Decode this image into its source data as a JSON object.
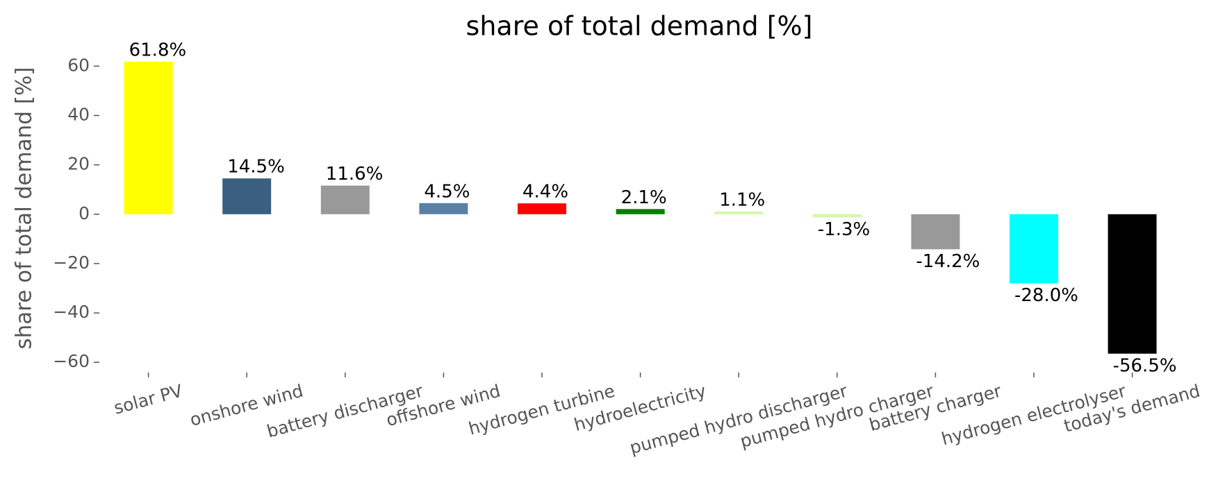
{
  "chart_data": {
    "type": "bar",
    "title": "share of total demand [%]",
    "y_label": "share of total demand [%]",
    "categories": [
      "solar PV",
      "onshore wind",
      "battery discharger",
      "offshore wind",
      "hydrogen turbine",
      "hydroelectricity",
      "pumped hydro discharger",
      "pumped hydro charger",
      "battery charger",
      "hydrogen electrolyser",
      "today's demand"
    ],
    "values": [
      61.8,
      14.5,
      11.6,
      4.5,
      4.4,
      2.1,
      1.1,
      -1.3,
      -14.2,
      -28.0,
      -56.5
    ],
    "value_labels": [
      "61.8%",
      "14.5%",
      "11.6%",
      "4.5%",
      "4.4%",
      "2.1%",
      "1.1%",
      "-1.3%",
      "-14.2%",
      "-28.0%",
      "-56.5%"
    ],
    "colors": [
      "#ffff00",
      "#3b5f80",
      "#999999",
      "#5b80a5",
      "#ff0000",
      "#008000",
      "#d4f7a8",
      "#d4f7a8",
      "#999999",
      "#00ffff",
      "#000000"
    ],
    "ylim": [
      -65,
      66
    ],
    "yticks": [
      {
        "value": -60,
        "label": "−60"
      },
      {
        "value": -40,
        "label": "−40"
      },
      {
        "value": -20,
        "label": "−20"
      },
      0,
      20,
      40,
      60
    ],
    "grid": false
  }
}
